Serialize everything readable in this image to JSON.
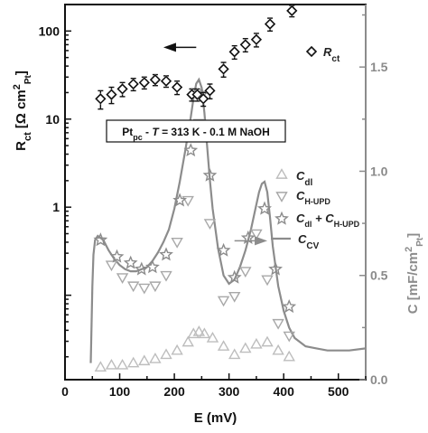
{
  "chart_data": {
    "type": "scatter",
    "annotation": "Pt<sub>pc</sub> - T = 313 K - 0.1 M NaOH",
    "annotation_parts": [
      "Pt",
      "pc",
      " - ",
      "T",
      " = 313 K - 0.1 M NaOH"
    ],
    "x_axis": {
      "label": "E (mV)",
      "range": [
        0,
        550
      ],
      "ticks": [
        "0",
        "100",
        "200",
        "300",
        "400",
        "500"
      ],
      "tick_values": [
        0,
        100,
        200,
        300,
        400,
        500
      ]
    },
    "y_left": {
      "label_main": "R",
      "label_sub": "ct",
      "label_rest": " [Ω cm",
      "label_sup": "2",
      "label_sub2": "Pt",
      "label_end": "]",
      "scale": "log",
      "range": [
        0.011,
        200
      ],
      "ticks": [
        "100",
        "10",
        "1"
      ],
      "tick_values": [
        100,
        10,
        1
      ]
    },
    "y_right": {
      "label_main": "C [mF/cm",
      "label_sup": "2",
      "label_sub": "Pt",
      "label_end": "]",
      "range": [
        0,
        1.8
      ],
      "ticks": [
        "0.0",
        "0.5",
        "1.0",
        "1.5"
      ],
      "tick_values": [
        0.0,
        0.5,
        1.0,
        1.5
      ]
    },
    "legend": {
      "rct": {
        "main": "R",
        "sub": "ct"
      },
      "cdl": {
        "main": "C",
        "sub": "dl"
      },
      "chupd": {
        "main": "C",
        "sub": "H-UPD"
      },
      "sum": {
        "main": "C",
        "sub": "dl",
        "plus": " + C",
        "sub2": "H-UPD"
      },
      "ccv": {
        "main": "C",
        "sub": "CV"
      }
    },
    "series": [
      {
        "name": "Rct",
        "axis": "left",
        "marker": "diamond",
        "x": [
          65,
          85,
          105,
          125,
          145,
          165,
          185,
          205,
          232,
          242,
          253,
          265,
          290,
          310,
          330,
          350,
          375,
          415
        ],
        "y": [
          17,
          19,
          22,
          25,
          26,
          28,
          27,
          23,
          19,
          19,
          17,
          21,
          37,
          58,
          70,
          80,
          120,
          170
        ],
        "err": [
          4,
          4,
          4,
          4,
          4,
          4,
          4,
          4,
          3,
          3,
          3,
          4,
          7,
          10,
          12,
          14,
          20,
          25
        ]
      },
      {
        "name": "Cdl",
        "axis": "right",
        "marker": "triangle-up",
        "x": [
          65,
          85,
          105,
          125,
          145,
          165,
          185,
          205,
          225,
          235,
          245,
          255,
          270,
          290,
          310,
          330,
          350,
          370,
          390,
          410
        ],
        "y": [
          0.06,
          0.07,
          0.07,
          0.08,
          0.09,
          0.1,
          0.12,
          0.14,
          0.18,
          0.22,
          0.23,
          0.22,
          0.2,
          0.16,
          0.12,
          0.15,
          0.17,
          0.18,
          0.14,
          0.11
        ]
      },
      {
        "name": "CH-UPD",
        "axis": "right",
        "marker": "triangle-down",
        "x": [
          85,
          105,
          125,
          145,
          165,
          185,
          205,
          225,
          245,
          265,
          290,
          310,
          330,
          350,
          370,
          390,
          410
        ],
        "y": [
          0.55,
          0.49,
          0.45,
          0.44,
          0.45,
          0.5,
          0.66,
          0.86,
          1.23,
          0.75,
          0.38,
          0.4,
          0.52,
          0.7,
          0.48,
          0.27,
          0.21
        ]
      },
      {
        "name": "Cdl + CH-UPD",
        "axis": "right",
        "marker": "star",
        "x": [
          65,
          95,
          120,
          140,
          160,
          185,
          210,
          230,
          250,
          265,
          290,
          310,
          335,
          365,
          385,
          410
        ],
        "y": [
          0.67,
          0.59,
          0.56,
          0.53,
          0.54,
          0.6,
          0.86,
          1.1,
          1.37,
          0.98,
          0.62,
          0.49,
          0.68,
          0.82,
          0.53,
          0.35
        ]
      },
      {
        "name": "CCV",
        "axis": "right",
        "marker": "line",
        "x": [
          47,
          48,
          50,
          52,
          55,
          60,
          70,
          80,
          90,
          100,
          110,
          120,
          130,
          140,
          150,
          160,
          170,
          180,
          190,
          200,
          210,
          220,
          230,
          235,
          240,
          245,
          250,
          255,
          260,
          265,
          270,
          280,
          290,
          300,
          310,
          320,
          330,
          340,
          350,
          355,
          360,
          365,
          370,
          375,
          380,
          390,
          400,
          410,
          420,
          440,
          460,
          480,
          500,
          520,
          550
        ],
        "y": [
          0.08,
          0.2,
          0.45,
          0.6,
          0.67,
          0.69,
          0.67,
          0.62,
          0.58,
          0.55,
          0.53,
          0.52,
          0.52,
          0.53,
          0.54,
          0.57,
          0.61,
          0.66,
          0.72,
          0.82,
          0.95,
          1.1,
          1.26,
          1.35,
          1.42,
          1.44,
          1.4,
          1.28,
          1.12,
          0.96,
          0.82,
          0.63,
          0.5,
          0.46,
          0.48,
          0.54,
          0.62,
          0.72,
          0.84,
          0.9,
          0.94,
          0.95,
          0.9,
          0.78,
          0.64,
          0.45,
          0.33,
          0.25,
          0.2,
          0.16,
          0.15,
          0.14,
          0.14,
          0.14,
          0.15
        ]
      }
    ],
    "arrows": [
      {
        "points_to": "left axis",
        "at_x": [
          240,
          180
        ],
        "at_y_left": 100
      },
      {
        "points_to": "right axis",
        "at_x": [
          310,
          370
        ],
        "at_y_right": 0.74
      }
    ],
    "colors": {
      "rct": "#111111",
      "cdl": "#bdbdbd",
      "chupd": "#a8a8a8",
      "sum": "#8c8c8c",
      "ccv": "#8c8c8c",
      "right_axis": "#8c8c8c"
    }
  }
}
